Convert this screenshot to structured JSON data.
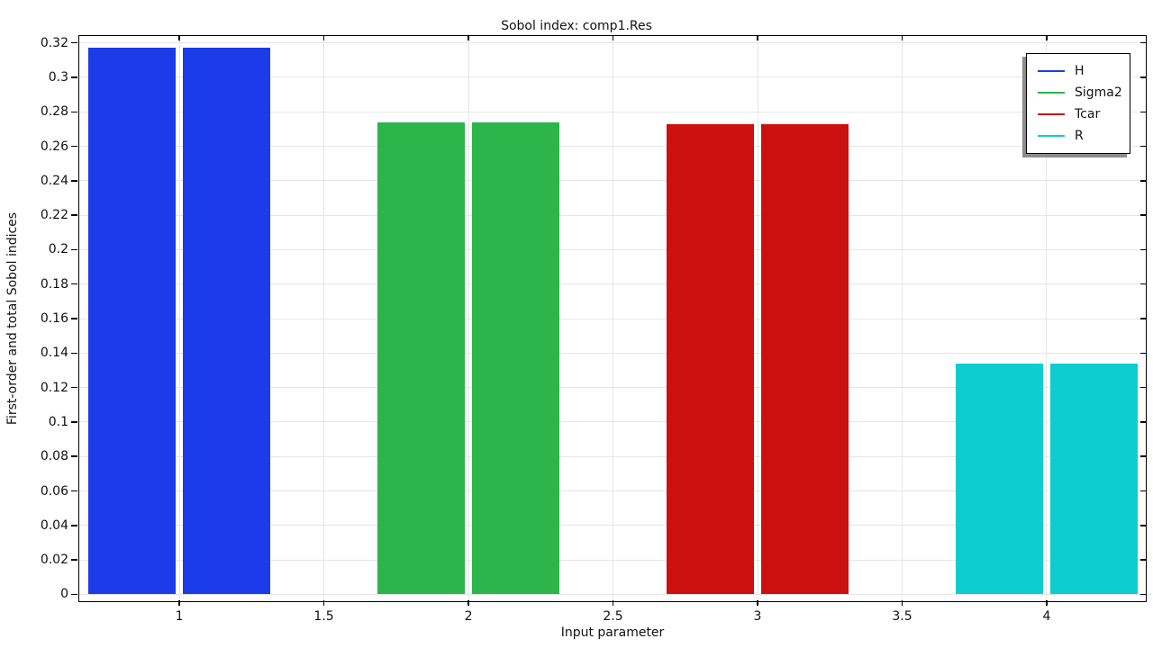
{
  "chart_data": {
    "type": "bar",
    "title": "Sobol index: comp1.Res",
    "xlabel": "Input parameter",
    "ylabel": "First-order and total Sobol indices",
    "grid": true,
    "legend_position": "top-right",
    "xlim": [
      0.654,
      4.349
    ],
    "ylim": [
      -0.005,
      0.324
    ],
    "x_ticks": [
      1,
      1.5,
      2,
      2.5,
      3,
      3.5,
      4
    ],
    "y_ticks": [
      0,
      0.02,
      0.04,
      0.06,
      0.08,
      0.1,
      0.12,
      0.14,
      0.16,
      0.18,
      0.2,
      0.22,
      0.24,
      0.26,
      0.28,
      0.3,
      0.32
    ],
    "bar_pair": {
      "outer_half_width": 0.315,
      "inner_half_gap": 0.013
    },
    "groups": [
      {
        "name": "H",
        "x": 1,
        "color": "#1b3ce8",
        "first_order": 0.317,
        "total": 0.317
      },
      {
        "name": "Sigma2",
        "x": 2,
        "color": "#2bb54a",
        "first_order": 0.274,
        "total": 0.274
      },
      {
        "name": "Tcar",
        "x": 3,
        "color": "#cc0f0f",
        "first_order": 0.273,
        "total": 0.273
      },
      {
        "name": "R",
        "x": 4,
        "color": "#0dcdd1",
        "first_order": 0.134,
        "total": 0.134
      }
    ],
    "colors": {
      "grid": "#e6e6e6",
      "axis": "#000000",
      "text": "#111111",
      "legend_shadow": "#8c8c8c",
      "background": "#ffffff"
    }
  }
}
